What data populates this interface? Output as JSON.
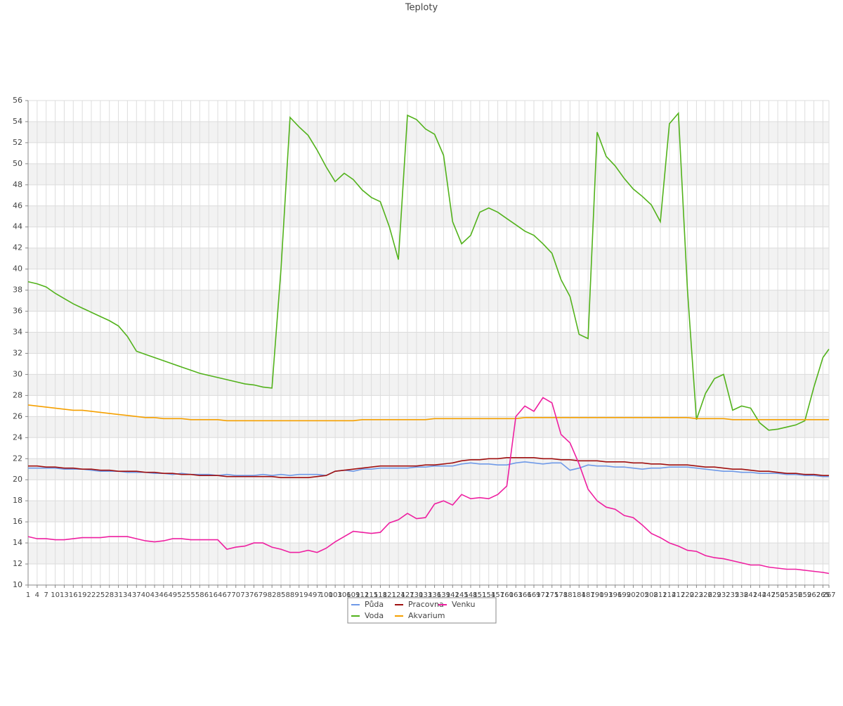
{
  "chart_data": {
    "type": "line",
    "title": "Teploty",
    "x": [
      1,
      4,
      7,
      10,
      13,
      16,
      19,
      22,
      25,
      28,
      31,
      34,
      37,
      40,
      43,
      46,
      49,
      52,
      55,
      58,
      61,
      64,
      67,
      70,
      73,
      76,
      79,
      82,
      85,
      88,
      91,
      94,
      97,
      100,
      103,
      106,
      109,
      112,
      115,
      118,
      121,
      124,
      127,
      130,
      133,
      136,
      139,
      142,
      145,
      148,
      151,
      154,
      157,
      160,
      163,
      166,
      169,
      172,
      175,
      178,
      181,
      184,
      187,
      190,
      193,
      196,
      199,
      202,
      205,
      208,
      211,
      214,
      217,
      220,
      223,
      226,
      229,
      232,
      235,
      238,
      241,
      244,
      247,
      250,
      253,
      256,
      259,
      262,
      265,
      267
    ],
    "xlim": [
      1,
      267
    ],
    "ylim": [
      10,
      56
    ],
    "yticks": [
      10,
      12,
      14,
      16,
      18,
      20,
      22,
      24,
      26,
      28,
      30,
      32,
      34,
      36,
      38,
      40,
      42,
      44,
      46,
      48,
      50,
      52,
      54,
      56
    ],
    "grid": true,
    "legend": "bottom",
    "series": [
      {
        "name": "Půda",
        "color": "#6f9ae8",
        "values": [
          21.1,
          21.1,
          21.1,
          21.1,
          21.0,
          21.0,
          21.0,
          20.9,
          20.8,
          20.8,
          20.8,
          20.7,
          20.7,
          20.7,
          20.6,
          20.6,
          20.5,
          20.6,
          20.5,
          20.5,
          20.5,
          20.4,
          20.5,
          20.4,
          20.4,
          20.4,
          20.5,
          20.4,
          20.5,
          20.4,
          20.5,
          20.5,
          20.5,
          20.4,
          20.8,
          20.9,
          20.8,
          21.0,
          21.0,
          21.1,
          21.1,
          21.1,
          21.1,
          21.2,
          21.2,
          21.3,
          21.3,
          21.3,
          21.5,
          21.6,
          21.5,
          21.5,
          21.4,
          21.4,
          21.6,
          21.7,
          21.6,
          21.5,
          21.6,
          21.6,
          20.9,
          21.1,
          21.4,
          21.3,
          21.3,
          21.2,
          21.2,
          21.1,
          21.0,
          21.1,
          21.1,
          21.2,
          21.2,
          21.2,
          21.1,
          21.0,
          20.9,
          20.8,
          20.8,
          20.7,
          20.7,
          20.6,
          20.6,
          20.6,
          20.5,
          20.5,
          20.4,
          20.4,
          20.3,
          20.3
        ]
      },
      {
        "name": "Voda",
        "color": "#52b21b",
        "values": [
          38.8,
          38.6,
          38.3,
          37.7,
          37.2,
          36.7,
          36.3,
          35.9,
          35.5,
          35.1,
          34.6,
          33.6,
          32.2,
          31.9,
          31.6,
          31.3,
          31.0,
          30.7,
          30.4,
          30.1,
          29.9,
          29.7,
          29.5,
          29.3,
          29.1,
          29.0,
          28.8,
          28.7,
          40.0,
          54.4,
          53.5,
          52.7,
          51.3,
          49.7,
          48.3,
          49.1,
          48.5,
          47.5,
          46.8,
          46.4,
          44.0,
          40.9,
          54.6,
          54.2,
          53.3,
          52.8,
          50.8,
          44.5,
          42.4,
          43.2,
          45.4,
          45.8,
          45.4,
          44.8,
          44.2,
          43.6,
          43.2,
          42.4,
          41.5,
          39.0,
          37.4,
          33.8,
          33.4,
          53.0,
          50.7,
          49.8,
          48.6,
          47.6,
          46.9,
          46.1,
          44.5,
          53.8,
          54.8,
          38.0,
          25.7,
          28.2,
          29.6,
          30.0,
          26.6,
          27.0,
          26.8,
          25.4,
          24.7,
          24.8,
          25.0,
          25.2,
          25.6,
          28.8,
          31.6,
          32.4
        ]
      },
      {
        "name": "Pracovna",
        "color": "#a01010",
        "values": [
          21.3,
          21.3,
          21.2,
          21.2,
          21.1,
          21.1,
          21.0,
          21.0,
          20.9,
          20.9,
          20.8,
          20.8,
          20.8,
          20.7,
          20.7,
          20.6,
          20.6,
          20.5,
          20.5,
          20.4,
          20.4,
          20.4,
          20.3,
          20.3,
          20.3,
          20.3,
          20.3,
          20.3,
          20.2,
          20.2,
          20.2,
          20.2,
          20.3,
          20.4,
          20.8,
          20.9,
          21.0,
          21.1,
          21.2,
          21.3,
          21.3,
          21.3,
          21.3,
          21.3,
          21.4,
          21.4,
          21.5,
          21.6,
          21.8,
          21.9,
          21.9,
          22.0,
          22.0,
          22.1,
          22.1,
          22.1,
          22.1,
          22.0,
          22.0,
          21.9,
          21.9,
          21.8,
          21.8,
          21.8,
          21.7,
          21.7,
          21.7,
          21.6,
          21.6,
          21.5,
          21.5,
          21.4,
          21.4,
          21.4,
          21.3,
          21.2,
          21.2,
          21.1,
          21.0,
          21.0,
          20.9,
          20.8,
          20.8,
          20.7,
          20.6,
          20.6,
          20.5,
          20.5,
          20.4,
          20.4
        ]
      },
      {
        "name": "Akvarium",
        "color": "#f5a000",
        "values": [
          27.1,
          27.0,
          26.9,
          26.8,
          26.7,
          26.6,
          26.6,
          26.5,
          26.4,
          26.3,
          26.2,
          26.1,
          26.0,
          25.9,
          25.9,
          25.8,
          25.8,
          25.8,
          25.7,
          25.7,
          25.7,
          25.7,
          25.6,
          25.6,
          25.6,
          25.6,
          25.6,
          25.6,
          25.6,
          25.6,
          25.6,
          25.6,
          25.6,
          25.6,
          25.6,
          25.6,
          25.6,
          25.7,
          25.7,
          25.7,
          25.7,
          25.7,
          25.7,
          25.7,
          25.7,
          25.8,
          25.8,
          25.8,
          25.8,
          25.8,
          25.8,
          25.8,
          25.8,
          25.8,
          25.8,
          25.9,
          25.9,
          25.9,
          25.9,
          25.9,
          25.9,
          25.9,
          25.9,
          25.9,
          25.9,
          25.9,
          25.9,
          25.9,
          25.9,
          25.9,
          25.9,
          25.9,
          25.9,
          25.9,
          25.8,
          25.8,
          25.8,
          25.8,
          25.7,
          25.7,
          25.7,
          25.7,
          25.7,
          25.7,
          25.7,
          25.7,
          25.7,
          25.7,
          25.7,
          25.7
        ]
      },
      {
        "name": "Venku",
        "color": "#ee1fa0",
        "values": [
          14.6,
          14.4,
          14.4,
          14.3,
          14.3,
          14.4,
          14.5,
          14.5,
          14.5,
          14.6,
          14.6,
          14.6,
          14.4,
          14.2,
          14.1,
          14.2,
          14.4,
          14.4,
          14.3,
          14.3,
          14.3,
          14.3,
          13.4,
          13.6,
          13.7,
          14.0,
          14.0,
          13.6,
          13.4,
          13.1,
          13.1,
          13.3,
          13.1,
          13.5,
          14.1,
          14.6,
          15.1,
          15.0,
          14.9,
          15.0,
          15.9,
          16.2,
          16.8,
          16.3,
          16.4,
          17.7,
          18.0,
          17.6,
          18.6,
          18.2,
          18.3,
          18.2,
          18.6,
          19.4,
          26.0,
          27.0,
          26.5,
          27.8,
          27.3,
          24.3,
          23.5,
          21.5,
          19.1,
          18.0,
          17.4,
          17.2,
          16.6,
          16.4,
          15.7,
          14.9,
          14.5,
          14.0,
          13.7,
          13.3,
          13.2,
          12.8,
          12.6,
          12.5,
          12.3,
          12.1,
          11.9,
          11.9,
          11.7,
          11.6,
          11.5,
          11.5,
          11.4,
          11.3,
          11.2,
          11.1
        ]
      }
    ]
  }
}
